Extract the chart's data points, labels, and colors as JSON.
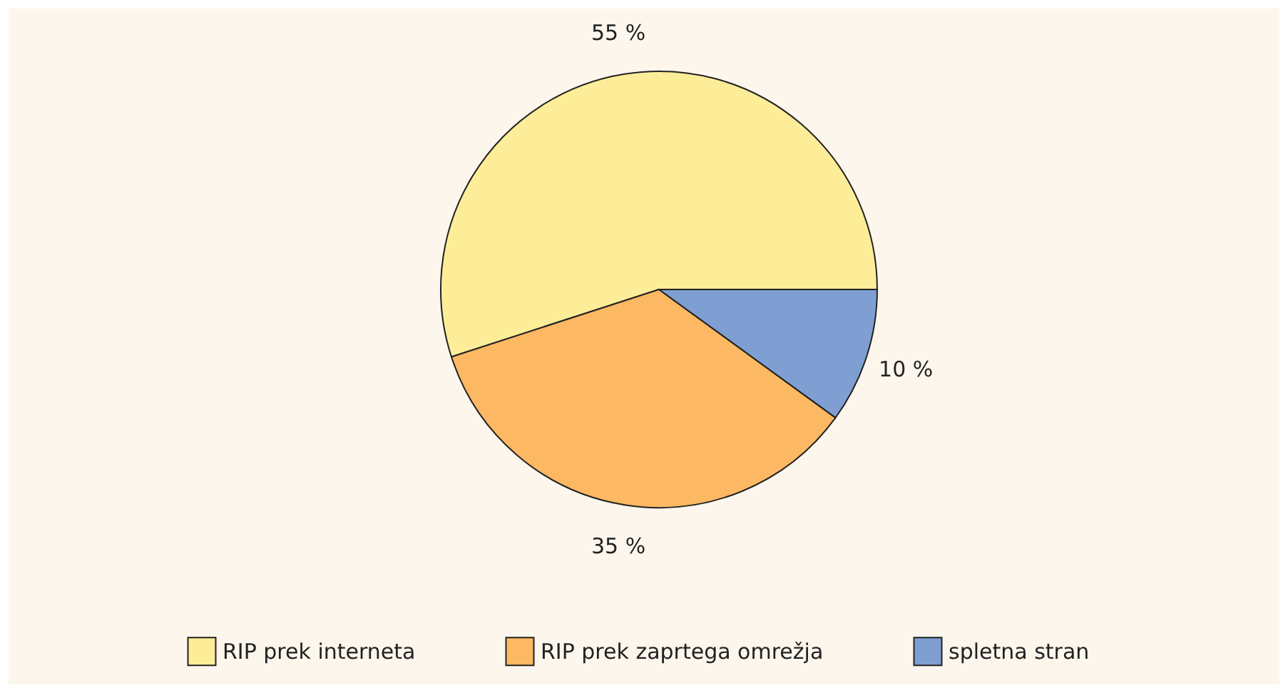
{
  "chart_data": {
    "type": "pie",
    "categories": [
      "RIP prek interneta",
      "RIP prek zaprtega omrežja",
      "spletna stran"
    ],
    "values": [
      55,
      35,
      10
    ],
    "colors": [
      "#feed98",
      "#fdb863",
      "#7f9fd3"
    ],
    "value_labels": [
      "55 %",
      "35 %",
      "10 %"
    ],
    "legend": "bottom"
  }
}
